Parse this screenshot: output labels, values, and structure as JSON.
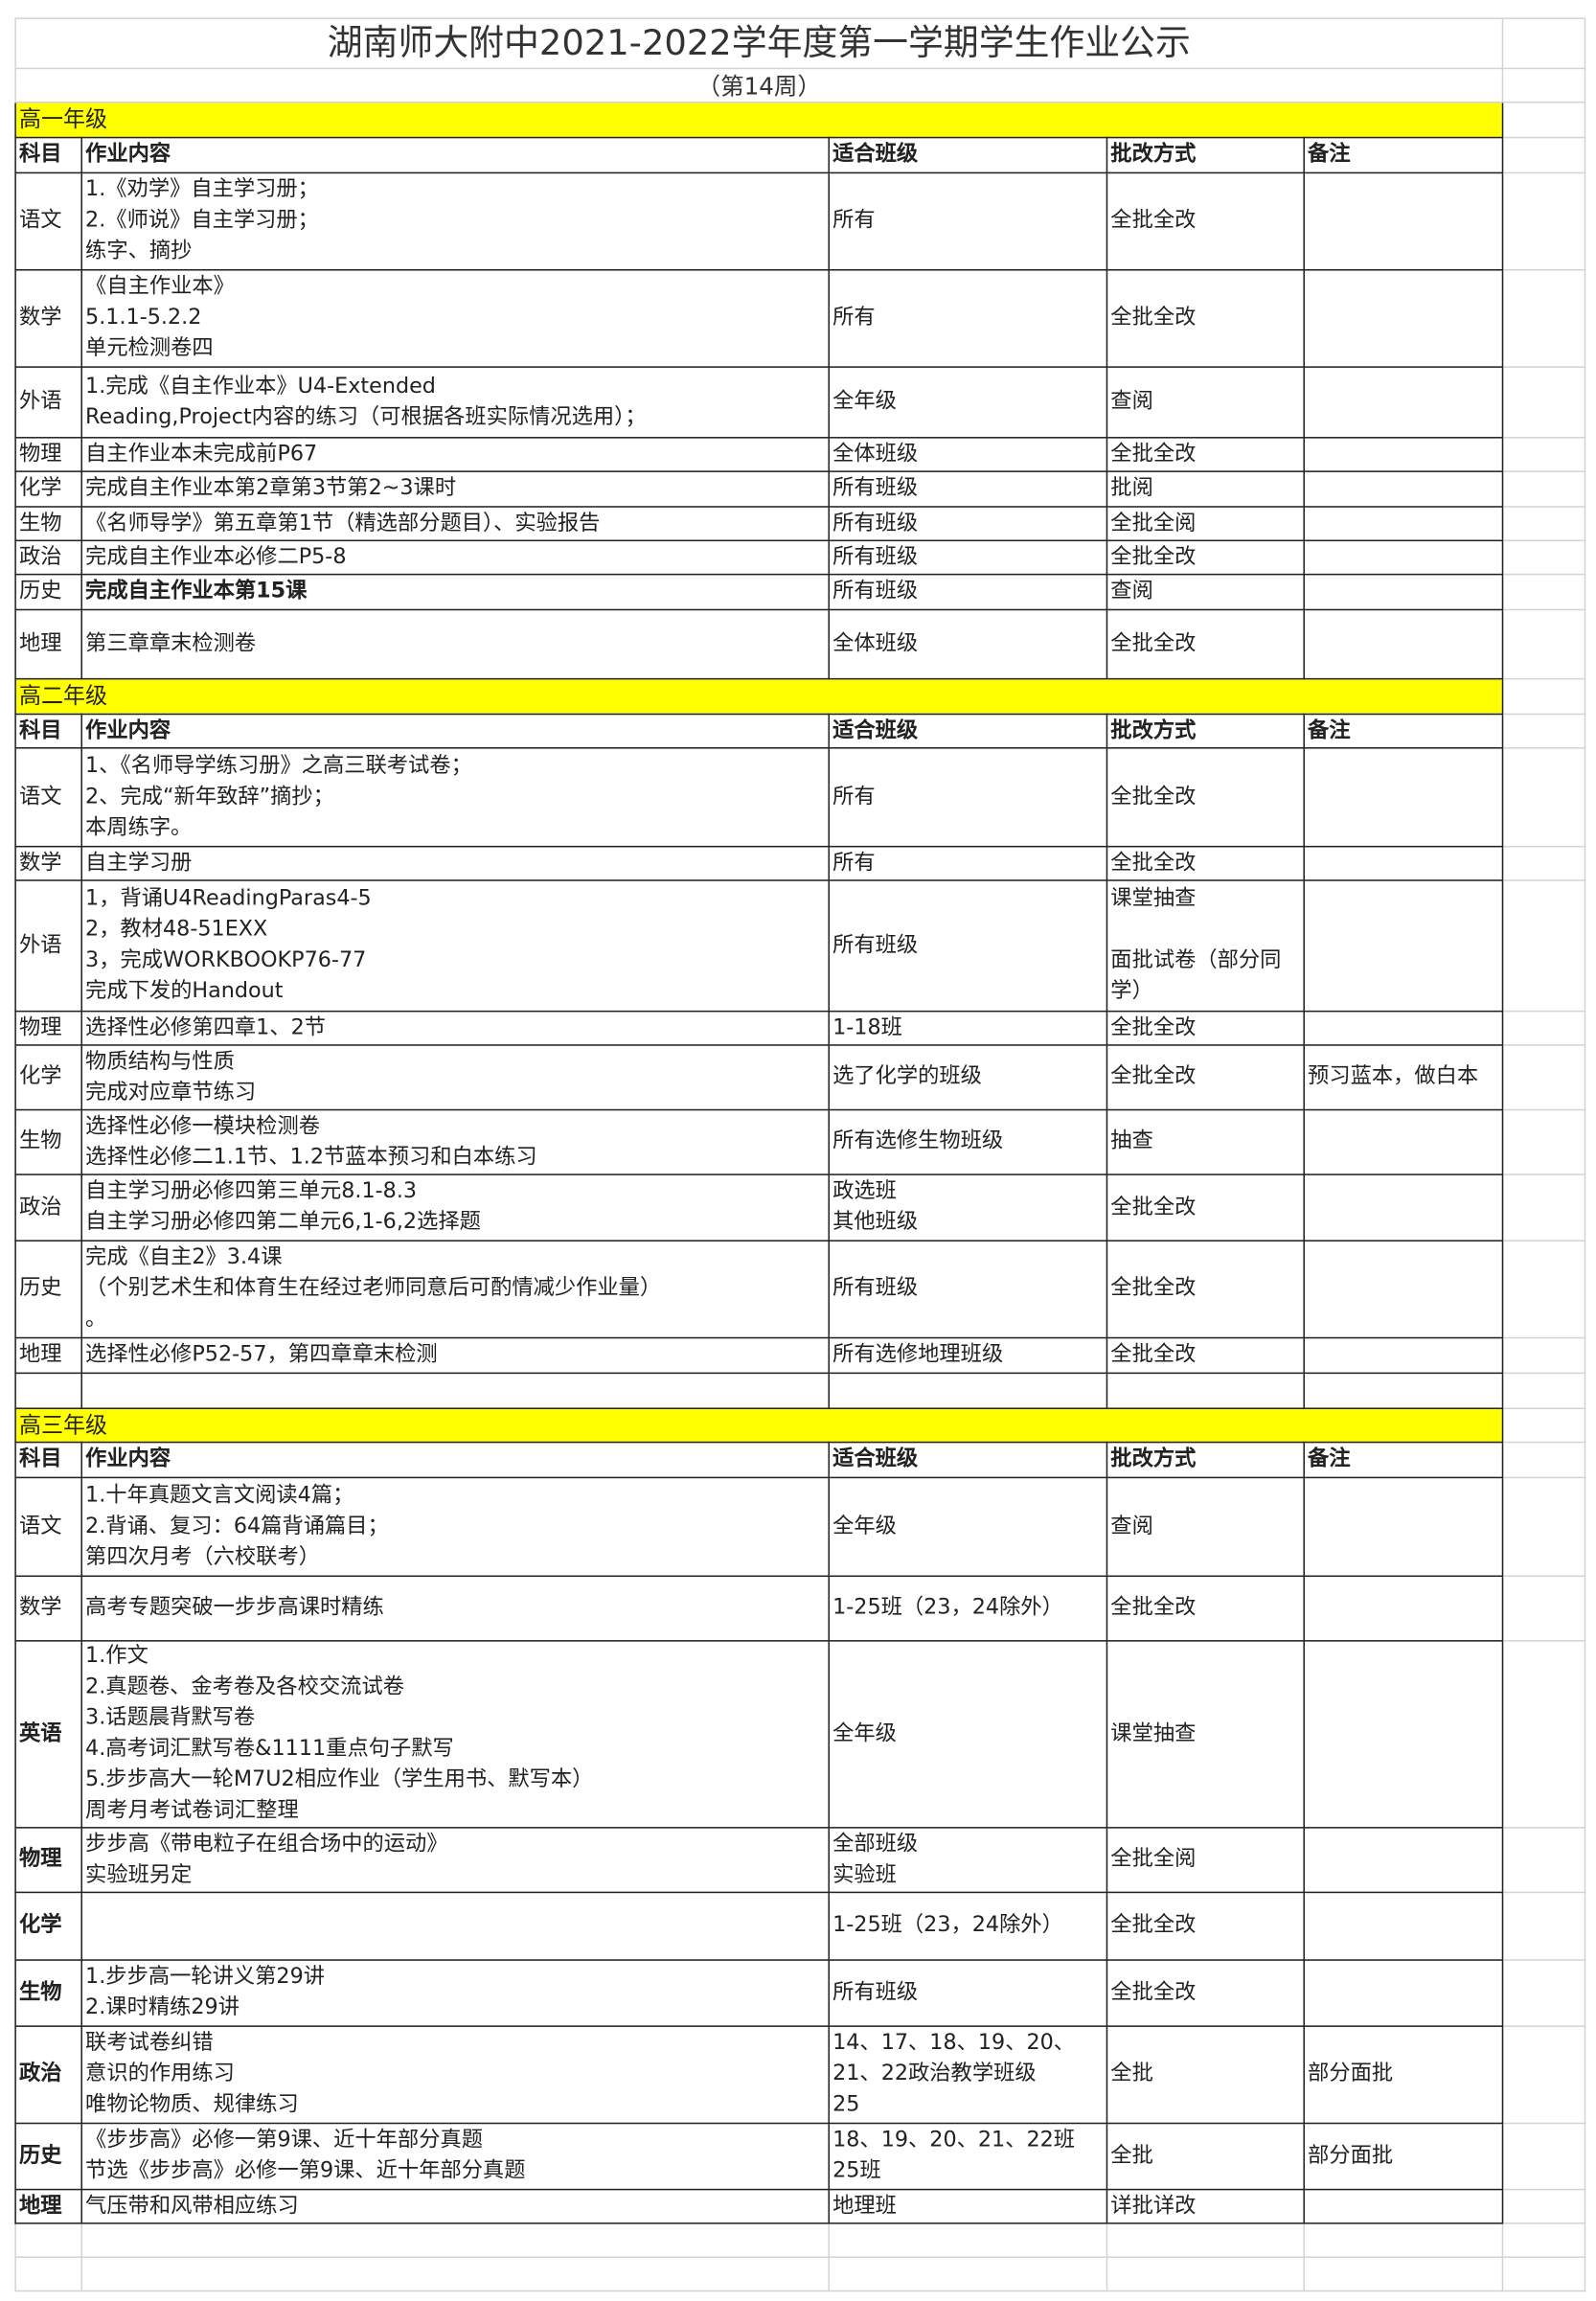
{
  "title": "湖南师大附中2021-2022学年度第一学期学生作业公示",
  "subtitle": "（第14周）",
  "colors": {
    "grade_banner": "#ffff00",
    "border": "#222222",
    "gridline": "#d4d4d4"
  },
  "grades": [
    {
      "label": "高一年级",
      "headers": [
        "科目",
        "作业内容",
        "适合班级",
        "批改方式",
        "备注"
      ],
      "rows": [
        {
          "subject": "语文",
          "content": "1.《劝学》自主学习册；\n2.《师说》自主学习册；\n练字、摘抄",
          "classes": "所有",
          "method": "全批全改",
          "remark": ""
        },
        {
          "subject": "数学",
          "content": "《自主作业本》\n5.1.1-5.2.2\n单元检测卷四",
          "classes": "所有",
          "method": "全批全改",
          "remark": ""
        },
        {
          "subject": "外语",
          "content": "1.完成《自主作业本》U4-Extended\nReading,Project内容的练习（可根据各班实际情况选用）；",
          "classes": "全年级",
          "method": "查阅",
          "remark": ""
        },
        {
          "subject": "物理",
          "content": "自主作业本未完成前P67",
          "classes": "全体班级",
          "method": "全批全改",
          "remark": ""
        },
        {
          "subject": "化学",
          "content": "完成自主作业本第2章第3节第2~3课时",
          "classes": "所有班级",
          "method": "批阅",
          "remark": ""
        },
        {
          "subject": "生物",
          "content": "《名师导学》第五章第1节（精选部分题目）、实验报告",
          "classes": "所有班级",
          "method": "全批全阅",
          "remark": ""
        },
        {
          "subject": "政治",
          "content": "完成自主作业本必修二P5-8",
          "classes": "所有班级",
          "method": "全批全改",
          "remark": ""
        },
        {
          "subject": "历史",
          "content": "完成自主作业本第15课",
          "classes": "所有班级",
          "method": "查阅",
          "remark": ""
        },
        {
          "subject": "地理",
          "content": "第三章章末检测卷",
          "classes": "全体班级",
          "method": "全批全改",
          "remark": ""
        }
      ]
    },
    {
      "label": "高二年级",
      "headers": [
        "科目",
        "作业内容",
        "适合班级",
        "批改方式",
        "备注"
      ],
      "rows": [
        {
          "subject": "语文",
          "content": "1、《名师导学练习册》之高三联考试卷；\n2、完成“新年致辞”摘抄；\n本周练字。",
          "classes": "所有",
          "method": "全批全改",
          "remark": ""
        },
        {
          "subject": "数学",
          "content": "自主学习册",
          "classes": "所有",
          "method": "全批全改",
          "remark": ""
        },
        {
          "subject": "外语",
          "content": "1，背诵U4ReadingParas4-5\n2，教材48-51EXX\n3，完成WORKBOOKP76-77\n完成下发的Handout",
          "classes": "所有班级",
          "method": "课堂抽查\n\n面批试卷（部分同学）",
          "remark": ""
        },
        {
          "subject": "物理",
          "content": "选择性必修第四章1、2节",
          "classes": "1-18班",
          "method": "全批全改",
          "remark": ""
        },
        {
          "subject": "化学",
          "content": "物质结构与性质\n完成对应章节练习",
          "classes": "选了化学的班级",
          "method": "全批全改",
          "remark": "预习蓝本，做白本"
        },
        {
          "subject": "生物",
          "content": "选择性必修一模块检测卷\n选择性必修二1.1节、1.2节蓝本预习和白本练习",
          "classes": "所有选修生物班级",
          "method": "抽查",
          "remark": ""
        },
        {
          "subject": "政治",
          "content": "自主学习册必修四第三单元8.1-8.3\n自主学习册必修四第二单元6,1-6,2选择题",
          "classes": "政选班\n其他班级",
          "method": "全批全改",
          "remark": ""
        },
        {
          "subject": "历史",
          "content": "完成《自主2》3.4课\n（个别艺术生和体育生在经过老师同意后可酌情减少作业量）\n。",
          "classes": "所有班级",
          "method": "全批全改",
          "remark": ""
        },
        {
          "subject": "地理",
          "content": "选择性必修P52-57，第四章章末检测",
          "classes": "所有选修地理班级",
          "method": "全批全改",
          "remark": ""
        },
        {
          "subject": "",
          "content": "",
          "classes": "",
          "method": "",
          "remark": ""
        }
      ]
    },
    {
      "label": "高三年级",
      "headers": [
        "科目",
        "作业内容",
        "适合班级",
        "批改方式",
        "备注"
      ],
      "rows": [
        {
          "subject": "语文",
          "content": "1.十年真题文言文阅读4篇；\n2.背诵、复习：64篇背诵篇目；\n第四次月考（六校联考）",
          "classes": "全年级",
          "method": "查阅",
          "remark": ""
        },
        {
          "subject": "数学",
          "content": "高考专题突破一步步高课时精练",
          "classes": "1-25班（23，24除外）",
          "method": "全批全改",
          "remark": ""
        },
        {
          "subject": "英语",
          "content": "1.作文\n2.真题卷、金考卷及各校交流试卷\n3.话题晨背默写卷\n4.高考词汇默写卷&1111重点句子默写\n5.步步高大一轮M7U2相应作业（学生用书、默写本）\n周考月考试卷词汇整理",
          "classes": "全年级",
          "method": "课堂抽查",
          "remark": ""
        },
        {
          "subject": "物理",
          "content": "步步高《带电粒子在组合场中的运动》\n实验班另定",
          "classes": "全部班级\n实验班",
          "method": "全批全阅",
          "remark": ""
        },
        {
          "subject": "化学",
          "content": "",
          "classes": "1-25班（23，24除外）",
          "method": "全批全改",
          "remark": ""
        },
        {
          "subject": "生物",
          "content": "1.步步高一轮讲义第29讲\n2.课时精练29讲",
          "classes": "所有班级",
          "method": "全批全改",
          "remark": ""
        },
        {
          "subject": "政治",
          "content": "联考试卷纠错\n意识的作用练习\n唯物论物质、规律练习",
          "classes": "14、17、18、19、20、21、22政治教学班级\n25",
          "method": "全批",
          "remark": "部分面批"
        },
        {
          "subject": "历史",
          "content": "《步步高》必修一第9课、近十年部分真题\n节选《步步高》必修一第9课、近十年部分真题",
          "classes": "18、19、20、21、22班\n25班",
          "method": "全批",
          "remark": "部分面批"
        },
        {
          "subject": "地理",
          "content": "气压带和风带相应练习",
          "classes": "地理班",
          "method": "详批详改",
          "remark": ""
        }
      ]
    }
  ]
}
